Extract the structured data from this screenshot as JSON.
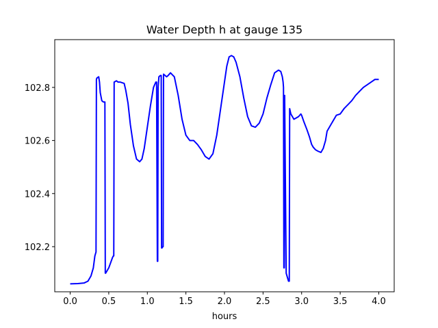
{
  "chart_data": {
    "type": "line",
    "title": "Water Depth h at gauge 135",
    "xlabel": "hours",
    "ylabel": "",
    "xlim": [
      -0.2,
      4.2
    ],
    "ylim": [
      102.03,
      102.98
    ],
    "xticks": [
      0.0,
      0.5,
      1.0,
      1.5,
      2.0,
      2.5,
      3.0,
      3.5,
      4.0
    ],
    "xtick_labels": [
      "0.0",
      "0.5",
      "1.0",
      "1.5",
      "2.0",
      "2.5",
      "3.0",
      "3.5",
      "4.0"
    ],
    "yticks": [
      102.2,
      102.4,
      102.6,
      102.8
    ],
    "ytick_labels": [
      "102.2",
      "102.4",
      "102.6",
      "102.8"
    ],
    "grid": false,
    "legend": "none",
    "series": [
      {
        "color": "#0000ff",
        "x": [
          0.0,
          0.1,
          0.18,
          0.23,
          0.27,
          0.3,
          0.32,
          0.335,
          0.34,
          0.345,
          0.37,
          0.38,
          0.39,
          0.41,
          0.43,
          0.44,
          0.45,
          0.455,
          0.46,
          0.5,
          0.55,
          0.56,
          0.565,
          0.57,
          0.6,
          0.62,
          0.65,
          0.7,
          0.72,
          0.75,
          0.78,
          0.82,
          0.86,
          0.9,
          0.93,
          0.96,
          1.0,
          1.04,
          1.08,
          1.11,
          1.12,
          1.13,
          1.135,
          1.14,
          1.15,
          1.17,
          1.18,
          1.185,
          1.19,
          1.2,
          1.205,
          1.21,
          1.25,
          1.27,
          1.3,
          1.35,
          1.4,
          1.45,
          1.5,
          1.55,
          1.6,
          1.65,
          1.7,
          1.75,
          1.8,
          1.85,
          1.9,
          1.95,
          2.0,
          2.03,
          2.06,
          2.09,
          2.12,
          2.15,
          2.2,
          2.25,
          2.3,
          2.35,
          2.4,
          2.45,
          2.5,
          2.55,
          2.6,
          2.65,
          2.7,
          2.73,
          2.75,
          2.76,
          2.765,
          2.77,
          2.775,
          2.78,
          2.8,
          2.83,
          2.84,
          2.845,
          2.86,
          2.88,
          2.9,
          2.93,
          2.96,
          2.99,
          3.0,
          3.03,
          3.07,
          3.1,
          3.13,
          3.15,
          3.18,
          3.21,
          3.25,
          3.28,
          3.31,
          3.33,
          3.36,
          3.4,
          3.45,
          3.5,
          3.55,
          3.6,
          3.65,
          3.7,
          3.75,
          3.8,
          3.85,
          3.9,
          3.95,
          4.0
        ],
        "y": [
          102.06,
          102.061,
          102.063,
          102.07,
          102.09,
          102.12,
          102.165,
          102.18,
          102.83,
          102.835,
          102.84,
          102.82,
          102.78,
          102.75,
          102.745,
          102.745,
          102.745,
          102.1,
          102.1,
          102.12,
          102.16,
          102.165,
          102.165,
          102.82,
          102.825,
          102.82,
          102.82,
          102.815,
          102.79,
          102.74,
          102.66,
          102.58,
          102.53,
          102.52,
          102.53,
          102.57,
          102.65,
          102.73,
          102.8,
          102.82,
          102.82,
          102.145,
          102.145,
          102.8,
          102.84,
          102.845,
          102.845,
          102.195,
          102.195,
          102.2,
          102.2,
          102.85,
          102.84,
          102.845,
          102.855,
          102.84,
          102.77,
          102.68,
          102.62,
          102.6,
          102.6,
          102.585,
          102.565,
          102.54,
          102.53,
          102.55,
          102.62,
          102.72,
          102.82,
          102.88,
          102.915,
          102.92,
          102.915,
          102.895,
          102.84,
          102.76,
          102.69,
          102.655,
          102.65,
          102.665,
          102.7,
          102.76,
          102.81,
          102.855,
          102.865,
          102.86,
          102.84,
          102.82,
          102.8,
          102.12,
          102.12,
          102.77,
          102.1,
          102.07,
          102.07,
          102.72,
          102.7,
          102.69,
          102.68,
          102.685,
          102.69,
          102.7,
          102.695,
          102.67,
          102.64,
          102.615,
          102.585,
          102.575,
          102.565,
          102.56,
          102.555,
          102.57,
          102.6,
          102.635,
          102.65,
          102.67,
          102.695,
          102.7,
          102.72,
          102.735,
          102.75,
          102.77,
          102.785,
          102.8,
          102.81,
          102.82,
          102.83,
          102.83
        ]
      }
    ]
  }
}
